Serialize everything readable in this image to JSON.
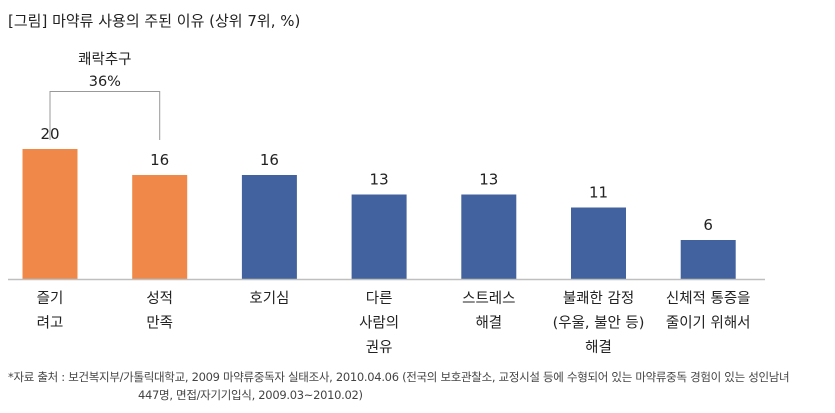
{
  "title": "[그림] 마약류 사용의 주된 이유 (상위 7위, %)",
  "annotation": {
    "label": "쾌락추구",
    "value": "36%"
  },
  "source": {
    "line1": "*자료 출처 : 보건복지부/가톨릭대학교, 2009 마약류중독자 실태조사, 2010.04.06 (전국의 보호관찰소, 교정시설 등에 수형되어 있는 마약류중독 경험이 있는 성인남녀",
    "line2": "447명, 면접/자기기입식, 2009.03~2010.02)"
  },
  "colors": {
    "highlight": "#EF8848",
    "default": "#41629E",
    "axis": "#BFBFBF"
  },
  "chart_data": {
    "type": "bar",
    "title": "[그림] 마약류 사용의 주된 이유 (상위 7위, %)",
    "xlabel": "",
    "ylabel": "%",
    "ylim": [
      0,
      20
    ],
    "grid": false,
    "categories": [
      [
        "즐기",
        "려고"
      ],
      [
        "성적",
        "만족"
      ],
      [
        "호기심"
      ],
      [
        "다른",
        "사람의",
        "권유"
      ],
      [
        "스트레스",
        "해결"
      ],
      [
        "불쾌한 감정",
        "(우울, 불안 등)",
        "해결"
      ],
      [
        "신체적 통증을",
        "줄이기 위해서"
      ]
    ],
    "values": [
      20,
      16,
      16,
      13,
      13,
      11,
      6
    ],
    "data_labels": [
      "20",
      "16",
      "16",
      "13",
      "13",
      "11",
      "6"
    ],
    "highlighted": [
      true,
      true,
      false,
      false,
      false,
      false,
      false
    ]
  }
}
